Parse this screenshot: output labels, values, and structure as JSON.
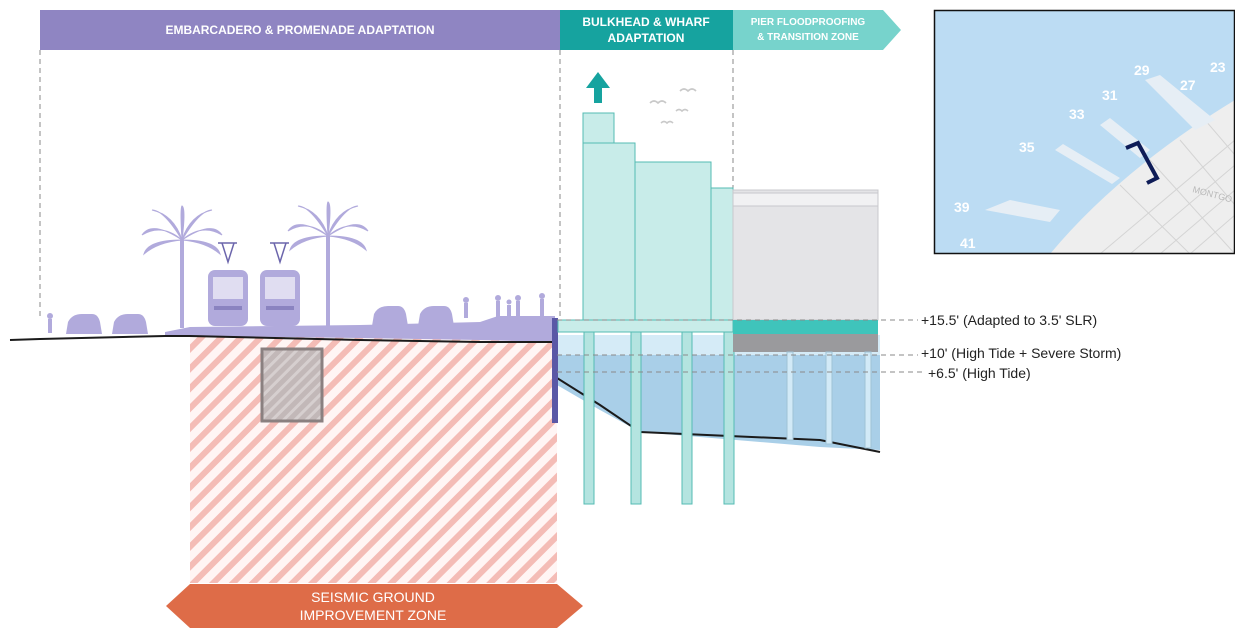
{
  "banners": {
    "embarcadero": "EMBARCADERO & PROMENADE ADAPTATION",
    "bulkhead_line1": "BULKHEAD & WHARF",
    "bulkhead_line2": "ADAPTATION",
    "pier_line1": "PIER FLOODPROOFING",
    "pier_line2": "& TRANSITION ZONE"
  },
  "levels": {
    "adapted": "+15.5' (Adapted to 3.5' SLR)",
    "storm": "+10' (High Tide + Severe Storm)",
    "high_tide": "+6.5' (High Tide)"
  },
  "seismic": {
    "line1": "SEISMIC GROUND",
    "line2": "IMPROVEMENT ZONE"
  },
  "map": {
    "piers": [
      "23",
      "27",
      "29",
      "31",
      "33",
      "35",
      "39",
      "41"
    ],
    "street": "MONTGO"
  },
  "colors": {
    "embarcadero_banner": "#8f85c2",
    "bulkhead_banner": "#16a39f",
    "pier_banner": "#77d3cc",
    "seismic_banner": "#de6c48",
    "water": "#a9cfe8",
    "map_water": "#bcdcf3"
  }
}
